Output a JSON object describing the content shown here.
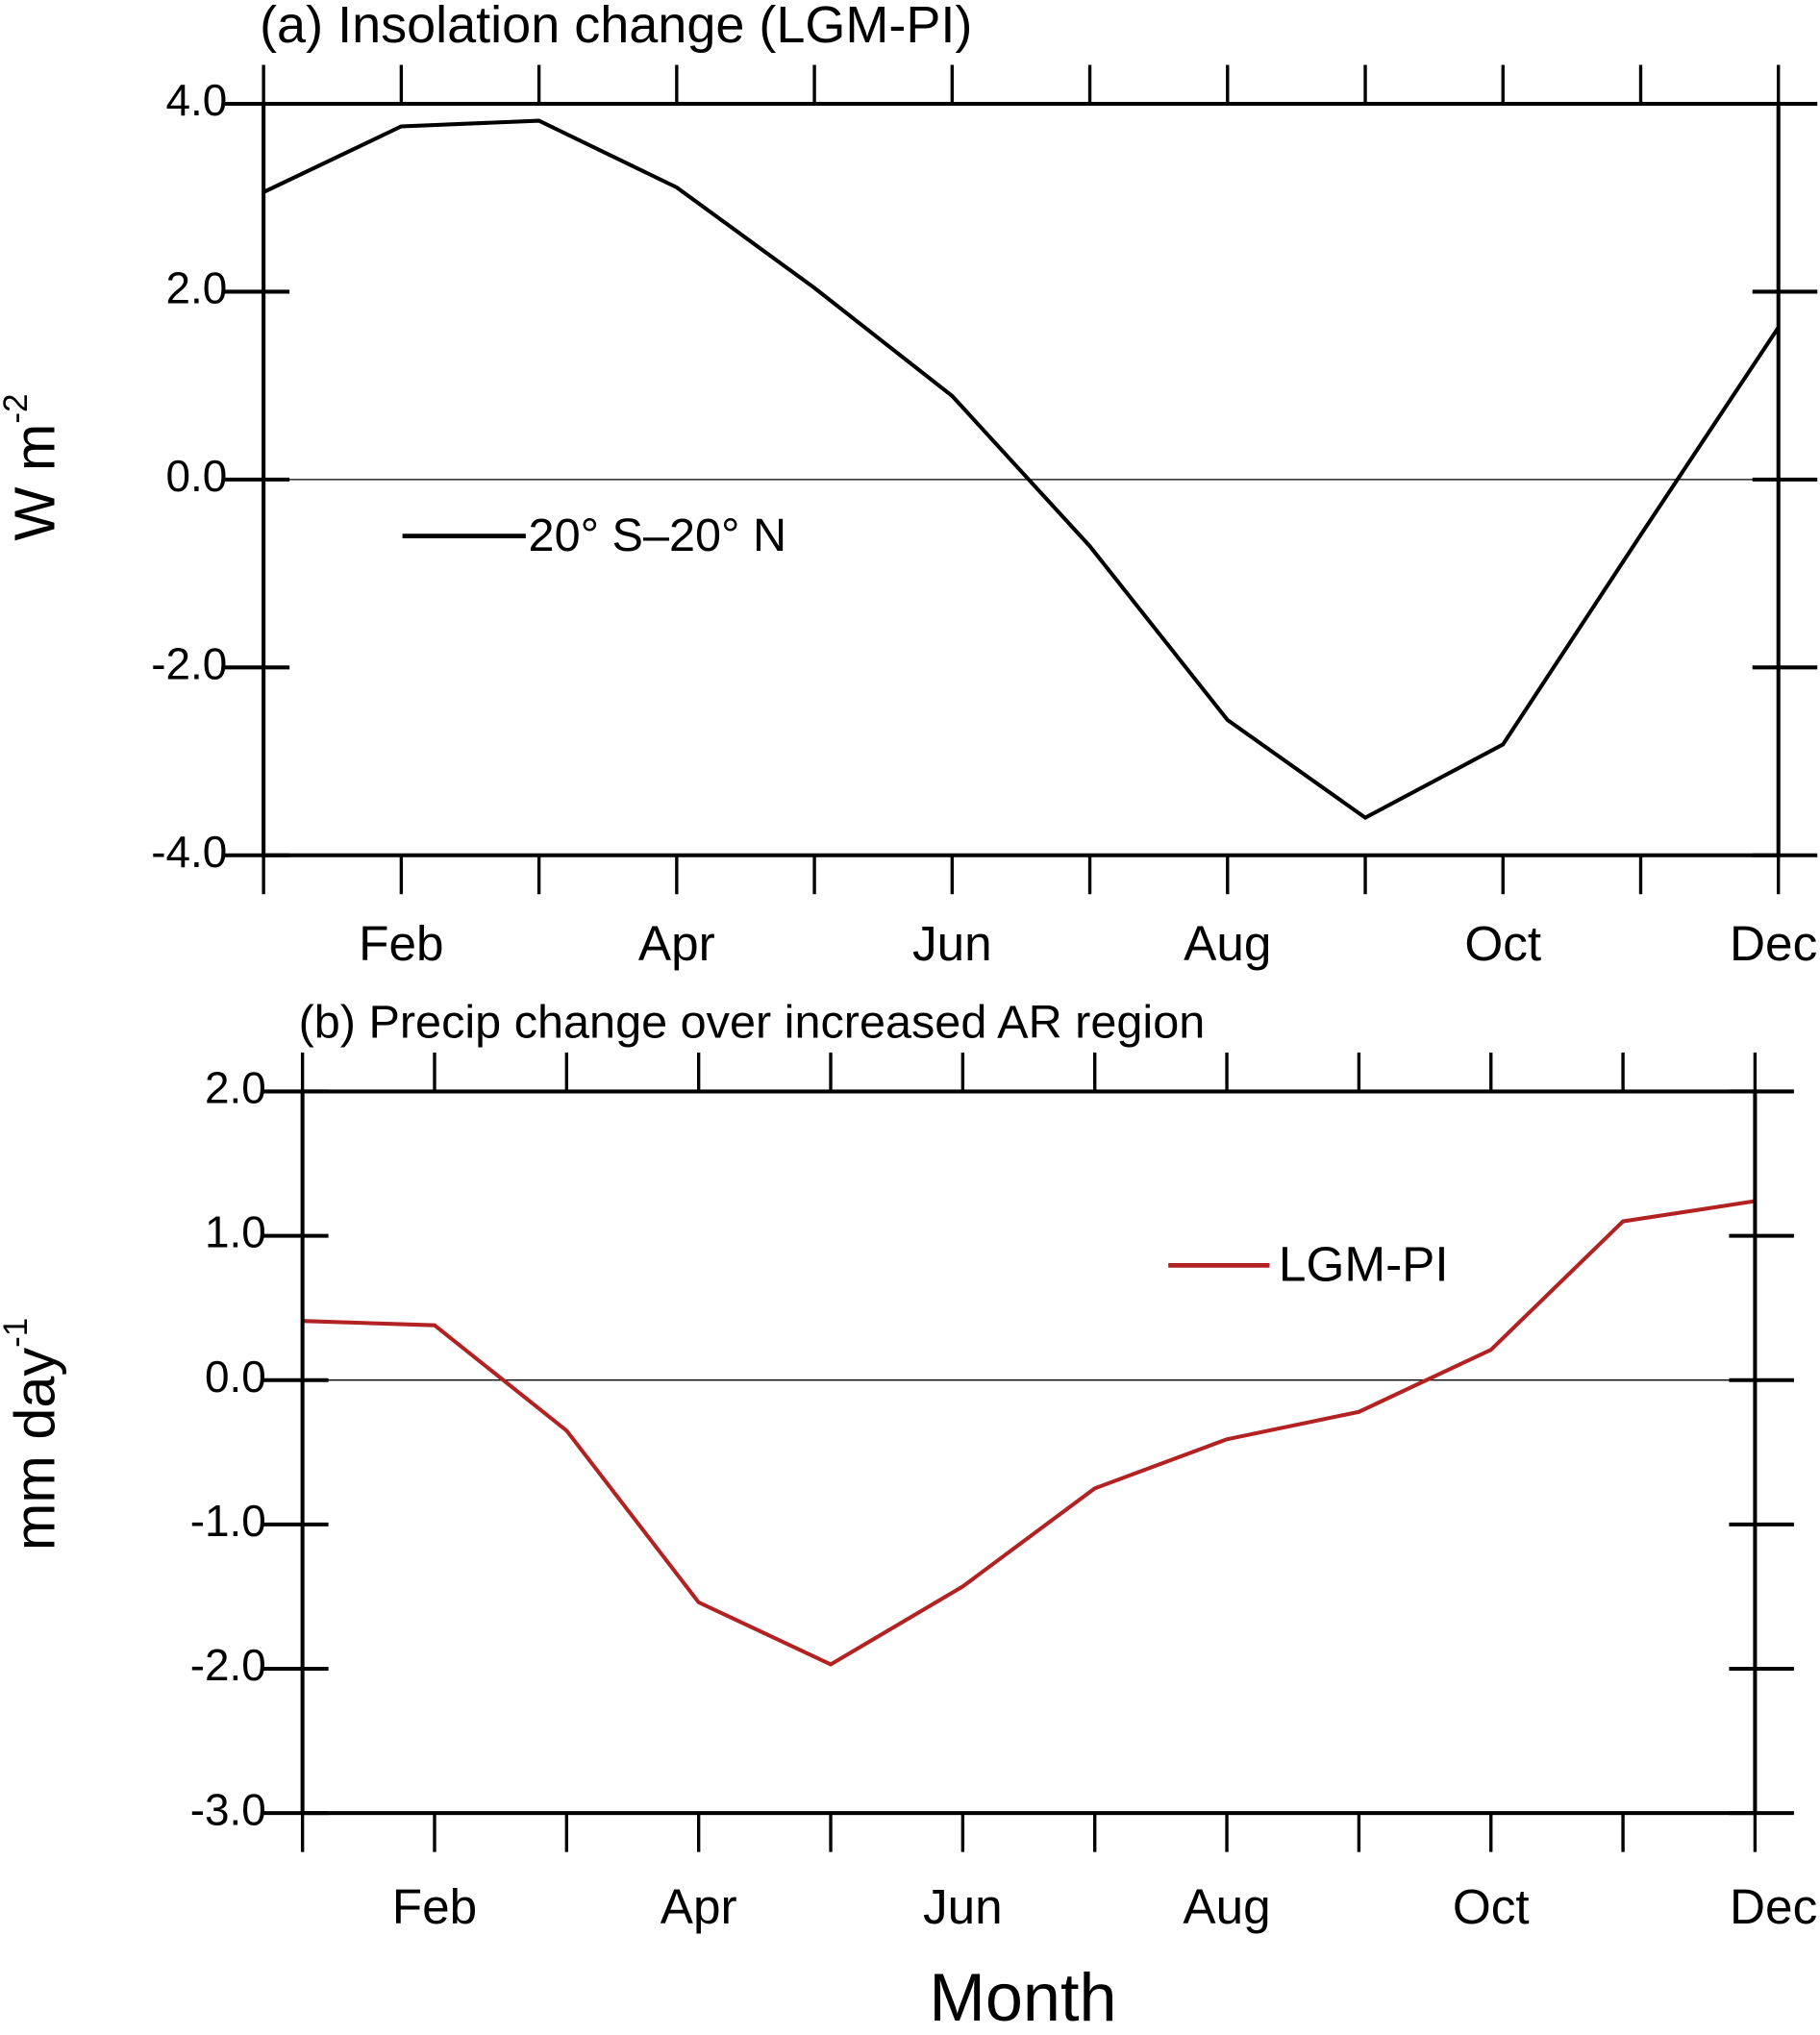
{
  "chart_data": [
    {
      "type": "line",
      "title": "(a) Insolation change (LGM-PI)",
      "ylabel": "W m",
      "ylabel_sup": "-2",
      "categories": [
        null,
        "Feb",
        null,
        "Apr",
        null,
        "Jun",
        null,
        "Aug",
        null,
        "Oct",
        null,
        "Dec"
      ],
      "series": [
        {
          "name": "20° S–20° N",
          "color": "#000000",
          "values": [
            3.06,
            3.76,
            3.82,
            3.11,
            2.04,
            0.89,
            -0.71,
            -2.56,
            -3.6,
            -2.82,
            -0.59,
            1.62
          ]
        }
      ],
      "ylim": [
        -4,
        4
      ],
      "yticks": [
        {
          "value": -4,
          "label": "-4.0"
        },
        {
          "value": -2,
          "label": "-2.0"
        },
        {
          "value": 0,
          "label": "0.0"
        },
        {
          "value": 2,
          "label": "2.0"
        },
        {
          "value": 4,
          "label": "4.0"
        }
      ],
      "hline": 0
    },
    {
      "type": "line",
      "title": "(b) Precip change over increased AR region",
      "ylabel": "mm day",
      "ylabel_sup": "-1",
      "xlabel": "Month",
      "categories": [
        null,
        "Feb",
        null,
        "Apr",
        null,
        "Jun",
        null,
        "Aug",
        null,
        "Oct",
        null,
        "Dec"
      ],
      "series": [
        {
          "name": "LGM-PI",
          "color": "#b22222",
          "values": [
            0.41,
            0.38,
            -0.35,
            -1.54,
            -1.97,
            -1.43,
            -0.75,
            -0.41,
            -0.22,
            0.21,
            1.1,
            1.24
          ]
        }
      ],
      "ylim": [
        -3,
        2
      ],
      "yticks": [
        {
          "value": -3,
          "label": "-3.0"
        },
        {
          "value": -2,
          "label": "-2.0"
        },
        {
          "value": -1,
          "label": "-1.0"
        },
        {
          "value": 0,
          "label": "0.0"
        },
        {
          "value": 1,
          "label": "1.0"
        },
        {
          "value": 2,
          "label": "2.0"
        }
      ],
      "hline": 0
    }
  ]
}
